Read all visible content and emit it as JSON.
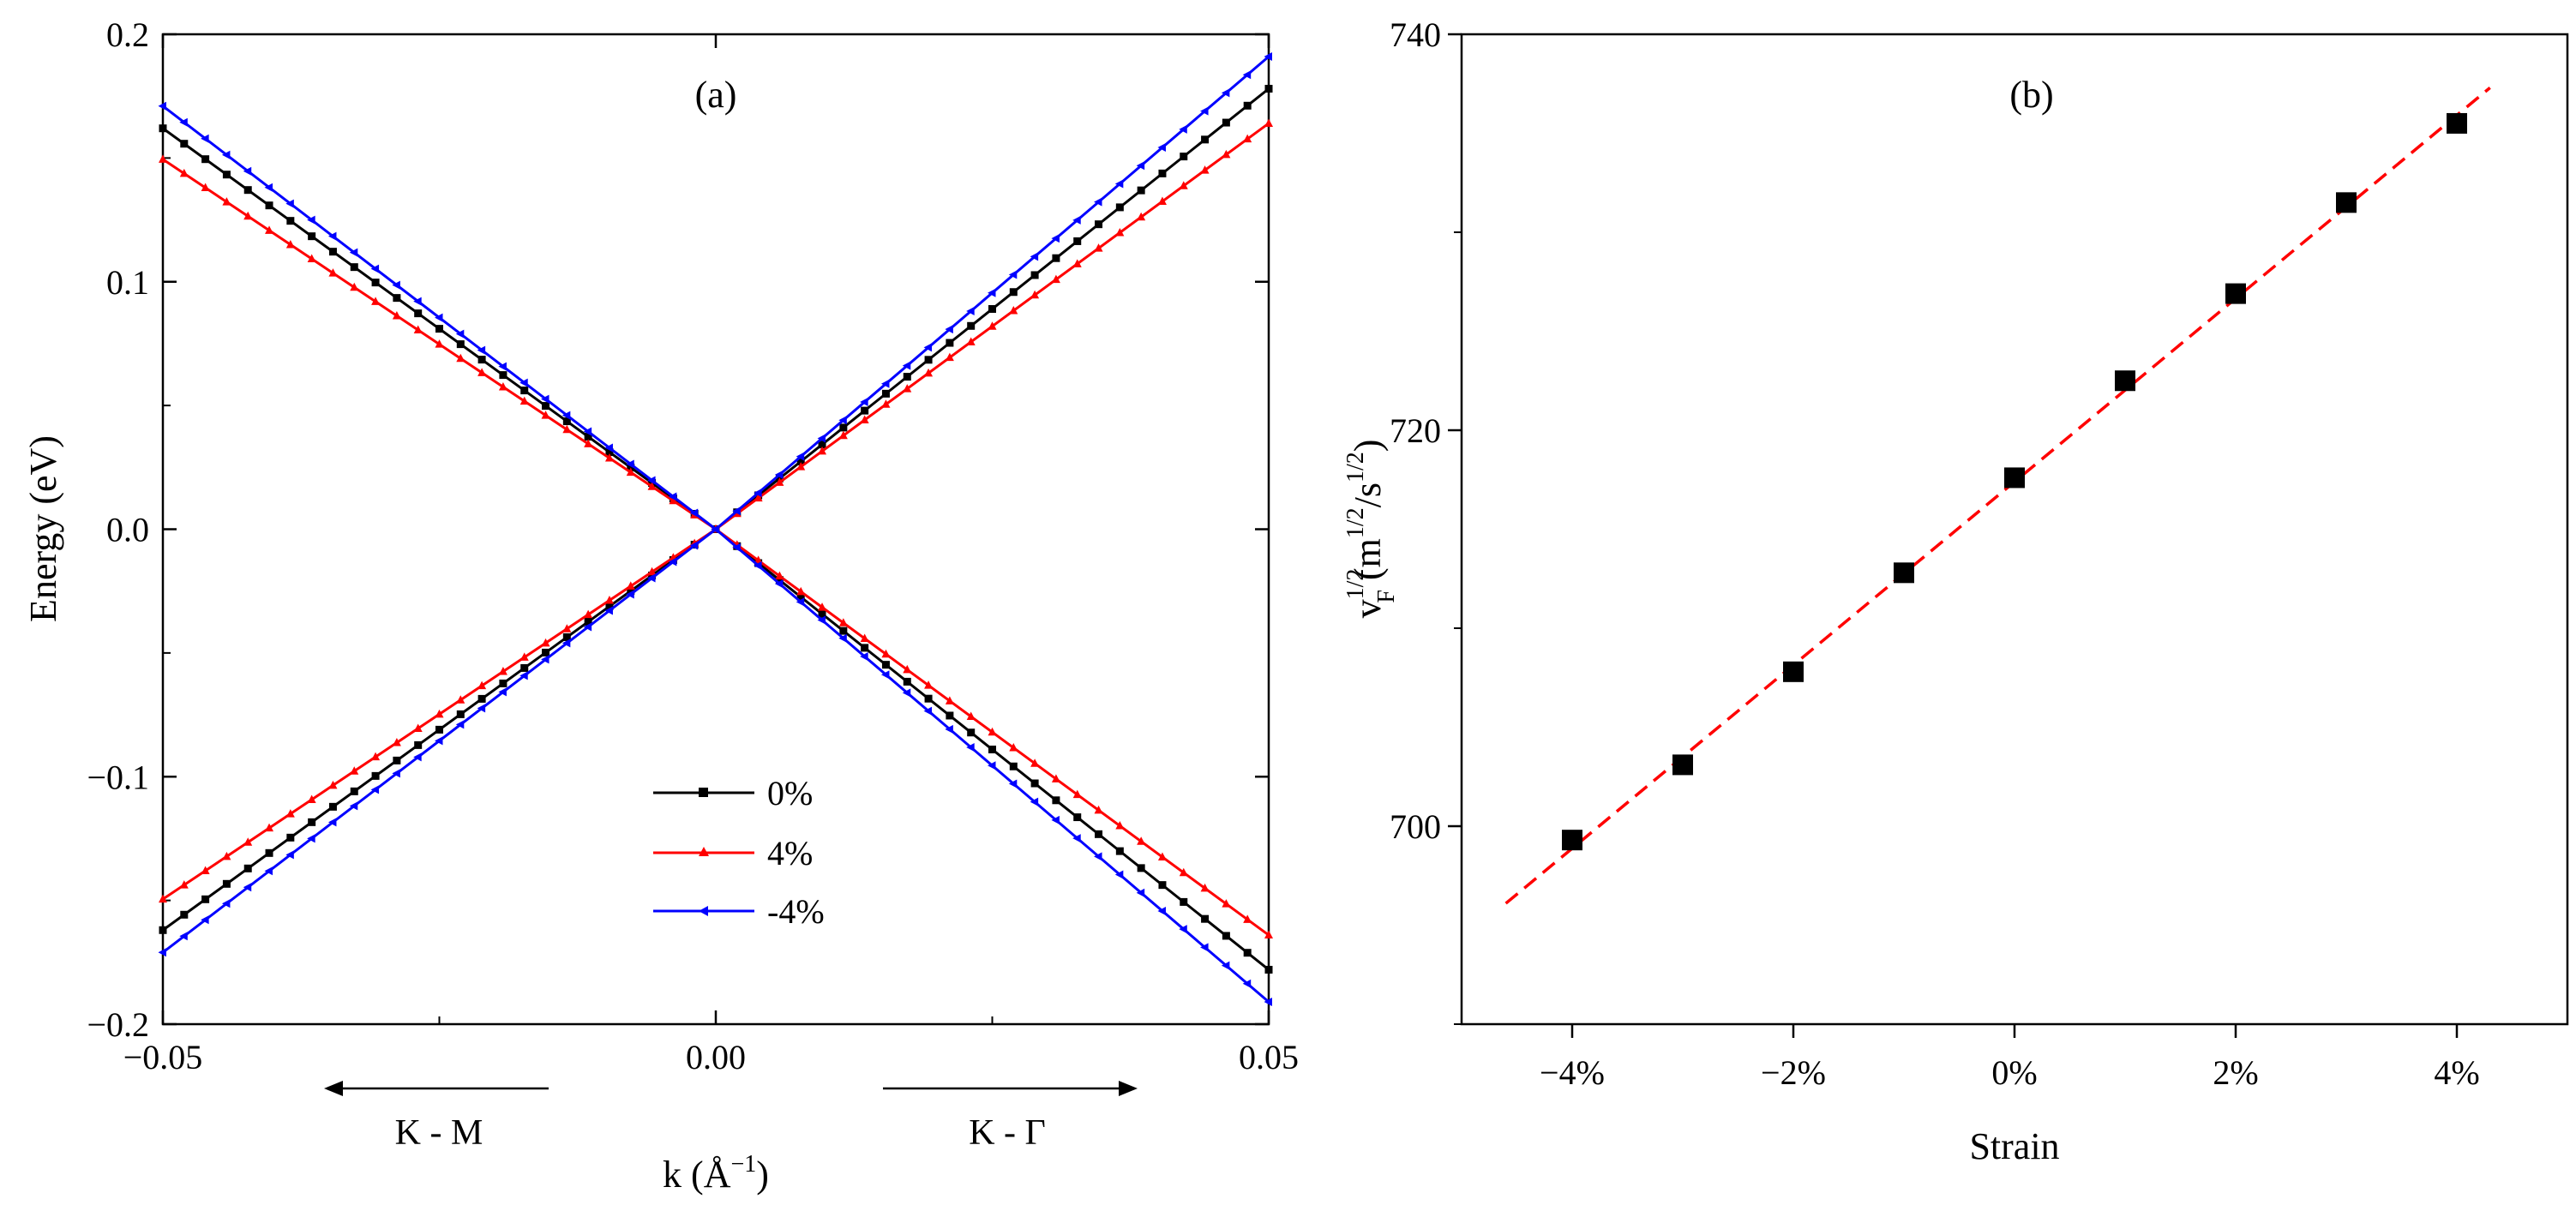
{
  "chart_data": [
    {
      "type": "line",
      "panel_label": "(a)",
      "xlabel_base": "k (Å",
      "xlabel_exp": "−1",
      "xlabel_close": ")",
      "ylabel": "Energy  (eV)",
      "xlim": [
        -0.05,
        0.05
      ],
      "ylim": [
        -0.2,
        0.2
      ],
      "x_ticks": [
        -0.05,
        0.0,
        0.05
      ],
      "x_tick_labels": [
        "−0.05",
        "0.00",
        "0.05"
      ],
      "y_ticks": [
        -0.2,
        -0.1,
        0.0,
        0.1,
        0.2
      ],
      "y_tick_labels": [
        "−0.2",
        "−0.1",
        "0.0",
        "0.1",
        "0.2"
      ],
      "legend_position": "center-bottom",
      "directions": {
        "left": "K - M",
        "right": "K - Γ"
      },
      "series": [
        {
          "name": "0%",
          "color": "#000000",
          "marker": "square",
          "slope_left": 3.24,
          "slope_right": 3.56
        },
        {
          "name": "4%",
          "color": "#ff0000",
          "marker": "triangle-up",
          "slope_left": 2.99,
          "slope_right": 3.28
        },
        {
          "name": "-4%",
          "color": "#0000ff",
          "marker": "triangle-left",
          "slope_left": 3.42,
          "slope_right": 3.82
        }
      ]
    },
    {
      "type": "scatter",
      "panel_label": "(b)",
      "xlabel": "Strain",
      "ylabel_v": "v",
      "ylabel_vsup": "1/2",
      "ylabel_vsub": "F",
      "ylabel_open": " (m",
      "ylabel_m_sup": "1/2",
      "ylabel_mid": "/s",
      "ylabel_s_sup": "1/2",
      "ylabel_close": ")",
      "xlim": [
        -5,
        5
      ],
      "ylim": [
        690,
        740
      ],
      "x_ticks": [
        -4,
        -2,
        0,
        2,
        4
      ],
      "x_tick_labels": [
        "−4%",
        "−2%",
        "0%",
        "2%",
        "4%"
      ],
      "y_ticks": [
        700,
        720,
        740
      ],
      "y_tick_labels": [
        "700",
        "720",
        "740"
      ],
      "marker_color": "#000000",
      "fit_color": "#ff0000",
      "x": [
        -4,
        -3,
        -2,
        -1,
        0,
        1,
        2,
        3,
        4
      ],
      "y": [
        699.3,
        703.1,
        707.8,
        712.8,
        717.6,
        722.5,
        726.9,
        731.5,
        735.5
      ],
      "fit": {
        "x": [
          -4.6,
          4.3
        ],
        "y": [
          696.1,
          737.3
        ]
      }
    }
  ]
}
